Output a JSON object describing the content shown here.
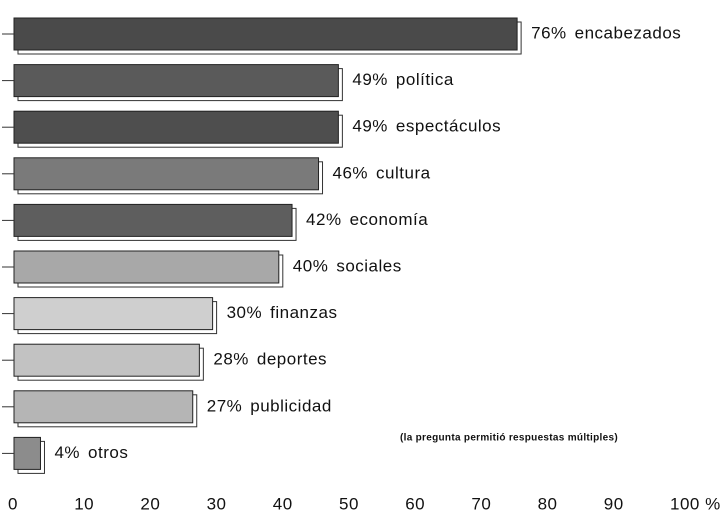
{
  "chart_data": {
    "type": "barh",
    "categories": [
      "encabezados",
      "política",
      "espectáculos",
      "cultura",
      "economía",
      "sociales",
      "finanzas",
      "deportes",
      "publicidad",
      "otros"
    ],
    "values": [
      76,
      49,
      49,
      46,
      42,
      40,
      30,
      28,
      27,
      4
    ],
    "value_labels": [
      "76%",
      "49%",
      "49%",
      "46%",
      "42%",
      "40%",
      "30%",
      "28%",
      "27%",
      "4%"
    ],
    "colors": [
      "#4a4a4a",
      "#5a5a5a",
      "#4e4e4e",
      "#7a7a7a",
      "#5e5e5e",
      "#a8a8a8",
      "#cfcfcf",
      "#c2c2c2",
      "#b5b5b5",
      "#8c8c8c"
    ],
    "xlim": [
      0,
      100
    ],
    "xticks": [
      0,
      10,
      20,
      30,
      40,
      50,
      60,
      70,
      80,
      90,
      {
        "value": 100,
        "label": "100 %"
      }
    ],
    "annotation": "(la pregunta permitió respuestas múltiples)"
  }
}
